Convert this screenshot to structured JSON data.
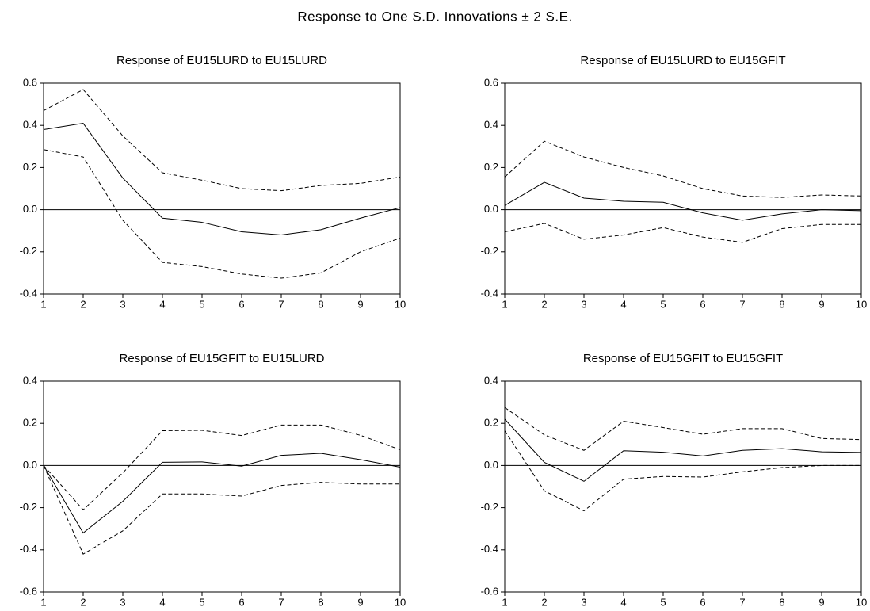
{
  "title": "Response to One S.D. Innovations ± 2 S.E.",
  "chart_data": [
    {
      "type": "line",
      "title": "Response of EU15LURD to EU15LURD",
      "x": [
        1,
        2,
        3,
        4,
        5,
        6,
        7,
        8,
        9,
        10
      ],
      "xlim": [
        1,
        10
      ],
      "xticks": [
        1,
        2,
        3,
        4,
        5,
        6,
        7,
        8,
        9,
        10
      ],
      "ylim": [
        -0.4,
        0.6
      ],
      "yticks": [
        -0.4,
        -0.2,
        {
          "value": 0,
          "label": "0.0"
        },
        0.2,
        0.4,
        0.6
      ],
      "series": [
        {
          "color": "#000000",
          "dash": false,
          "values": [
            0.38,
            0.41,
            0.15,
            -0.04,
            -0.06,
            -0.105,
            -0.12,
            -0.095,
            -0.04,
            0.01
          ]
        },
        {
          "color": "#000000",
          "dash": true,
          "values": [
            0.47,
            0.57,
            0.35,
            0.175,
            0.14,
            0.1,
            0.09,
            0.115,
            0.125,
            0.155
          ]
        },
        {
          "color": "#000000",
          "dash": true,
          "values": [
            0.285,
            0.25,
            -0.05,
            -0.25,
            -0.27,
            -0.305,
            -0.325,
            -0.3,
            -0.2,
            -0.135
          ]
        }
      ]
    },
    {
      "type": "line",
      "title": "Response of EU15LURD to EU15GFIT",
      "x": [
        1,
        2,
        3,
        4,
        5,
        6,
        7,
        8,
        9,
        10
      ],
      "xlim": [
        1,
        10
      ],
      "xticks": [
        1,
        2,
        3,
        4,
        5,
        6,
        7,
        8,
        9,
        10
      ],
      "ylim": [
        -0.4,
        0.6
      ],
      "yticks": [
        -0.4,
        -0.2,
        {
          "value": 0,
          "label": "0.0"
        },
        0.2,
        0.4,
        0.6
      ],
      "series": [
        {
          "color": "#000000",
          "dash": false,
          "values": [
            0.02,
            0.13,
            0.055,
            0.04,
            0.035,
            -0.015,
            -0.05,
            -0.02,
            0.0,
            -0.005
          ]
        },
        {
          "color": "#000000",
          "dash": true,
          "values": [
            0.155,
            0.325,
            0.25,
            0.2,
            0.16,
            0.1,
            0.065,
            0.058,
            0.07,
            0.065
          ]
        },
        {
          "color": "#000000",
          "dash": true,
          "values": [
            -0.105,
            -0.065,
            -0.14,
            -0.12,
            -0.085,
            -0.13,
            -0.155,
            -0.09,
            -0.07,
            -0.07
          ]
        }
      ]
    },
    {
      "type": "line",
      "title": "Response of EU15GFIT to EU15LURD",
      "x": [
        1,
        2,
        3,
        4,
        5,
        6,
        7,
        8,
        9,
        10
      ],
      "xlim": [
        1,
        10
      ],
      "xticks": [
        1,
        2,
        3,
        4,
        5,
        6,
        7,
        8,
        9,
        10
      ],
      "ylim": [
        -0.6,
        0.4
      ],
      "yticks": [
        -0.6,
        -0.4,
        -0.2,
        {
          "value": 0,
          "label": "0.0"
        },
        0.2,
        0.4
      ],
      "series": [
        {
          "color": "#000000",
          "dash": false,
          "values": [
            0.0,
            -0.32,
            -0.17,
            0.015,
            0.017,
            -0.003,
            0.048,
            0.058,
            0.028,
            -0.008
          ]
        },
        {
          "color": "#000000",
          "dash": true,
          "values": [
            0.0,
            -0.21,
            -0.035,
            0.165,
            0.167,
            0.142,
            0.192,
            0.192,
            0.143,
            0.075
          ]
        },
        {
          "color": "#000000",
          "dash": true,
          "values": [
            0.0,
            -0.42,
            -0.31,
            -0.135,
            -0.135,
            -0.145,
            -0.095,
            -0.08,
            -0.088,
            -0.088
          ]
        }
      ]
    },
    {
      "type": "line",
      "title": "Response of EU15GFIT to EU15GFIT",
      "x": [
        1,
        2,
        3,
        4,
        5,
        6,
        7,
        8,
        9,
        10
      ],
      "xlim": [
        1,
        10
      ],
      "xticks": [
        1,
        2,
        3,
        4,
        5,
        6,
        7,
        8,
        9,
        10
      ],
      "ylim": [
        -0.6,
        0.4
      ],
      "yticks": [
        -0.6,
        -0.4,
        -0.2,
        {
          "value": 0,
          "label": "0.0"
        },
        0.2,
        0.4
      ],
      "series": [
        {
          "color": "#000000",
          "dash": false,
          "values": [
            0.22,
            0.015,
            -0.075,
            0.07,
            0.063,
            0.045,
            0.072,
            0.08,
            0.065,
            0.062
          ]
        },
        {
          "color": "#000000",
          "dash": true,
          "values": [
            0.275,
            0.145,
            0.072,
            0.21,
            0.18,
            0.148,
            0.175,
            0.175,
            0.128,
            0.123
          ]
        },
        {
          "color": "#000000",
          "dash": true,
          "values": [
            0.165,
            -0.12,
            -0.215,
            -0.065,
            -0.052,
            -0.055,
            -0.03,
            -0.01,
            0.0,
            0.0
          ]
        }
      ]
    }
  ]
}
